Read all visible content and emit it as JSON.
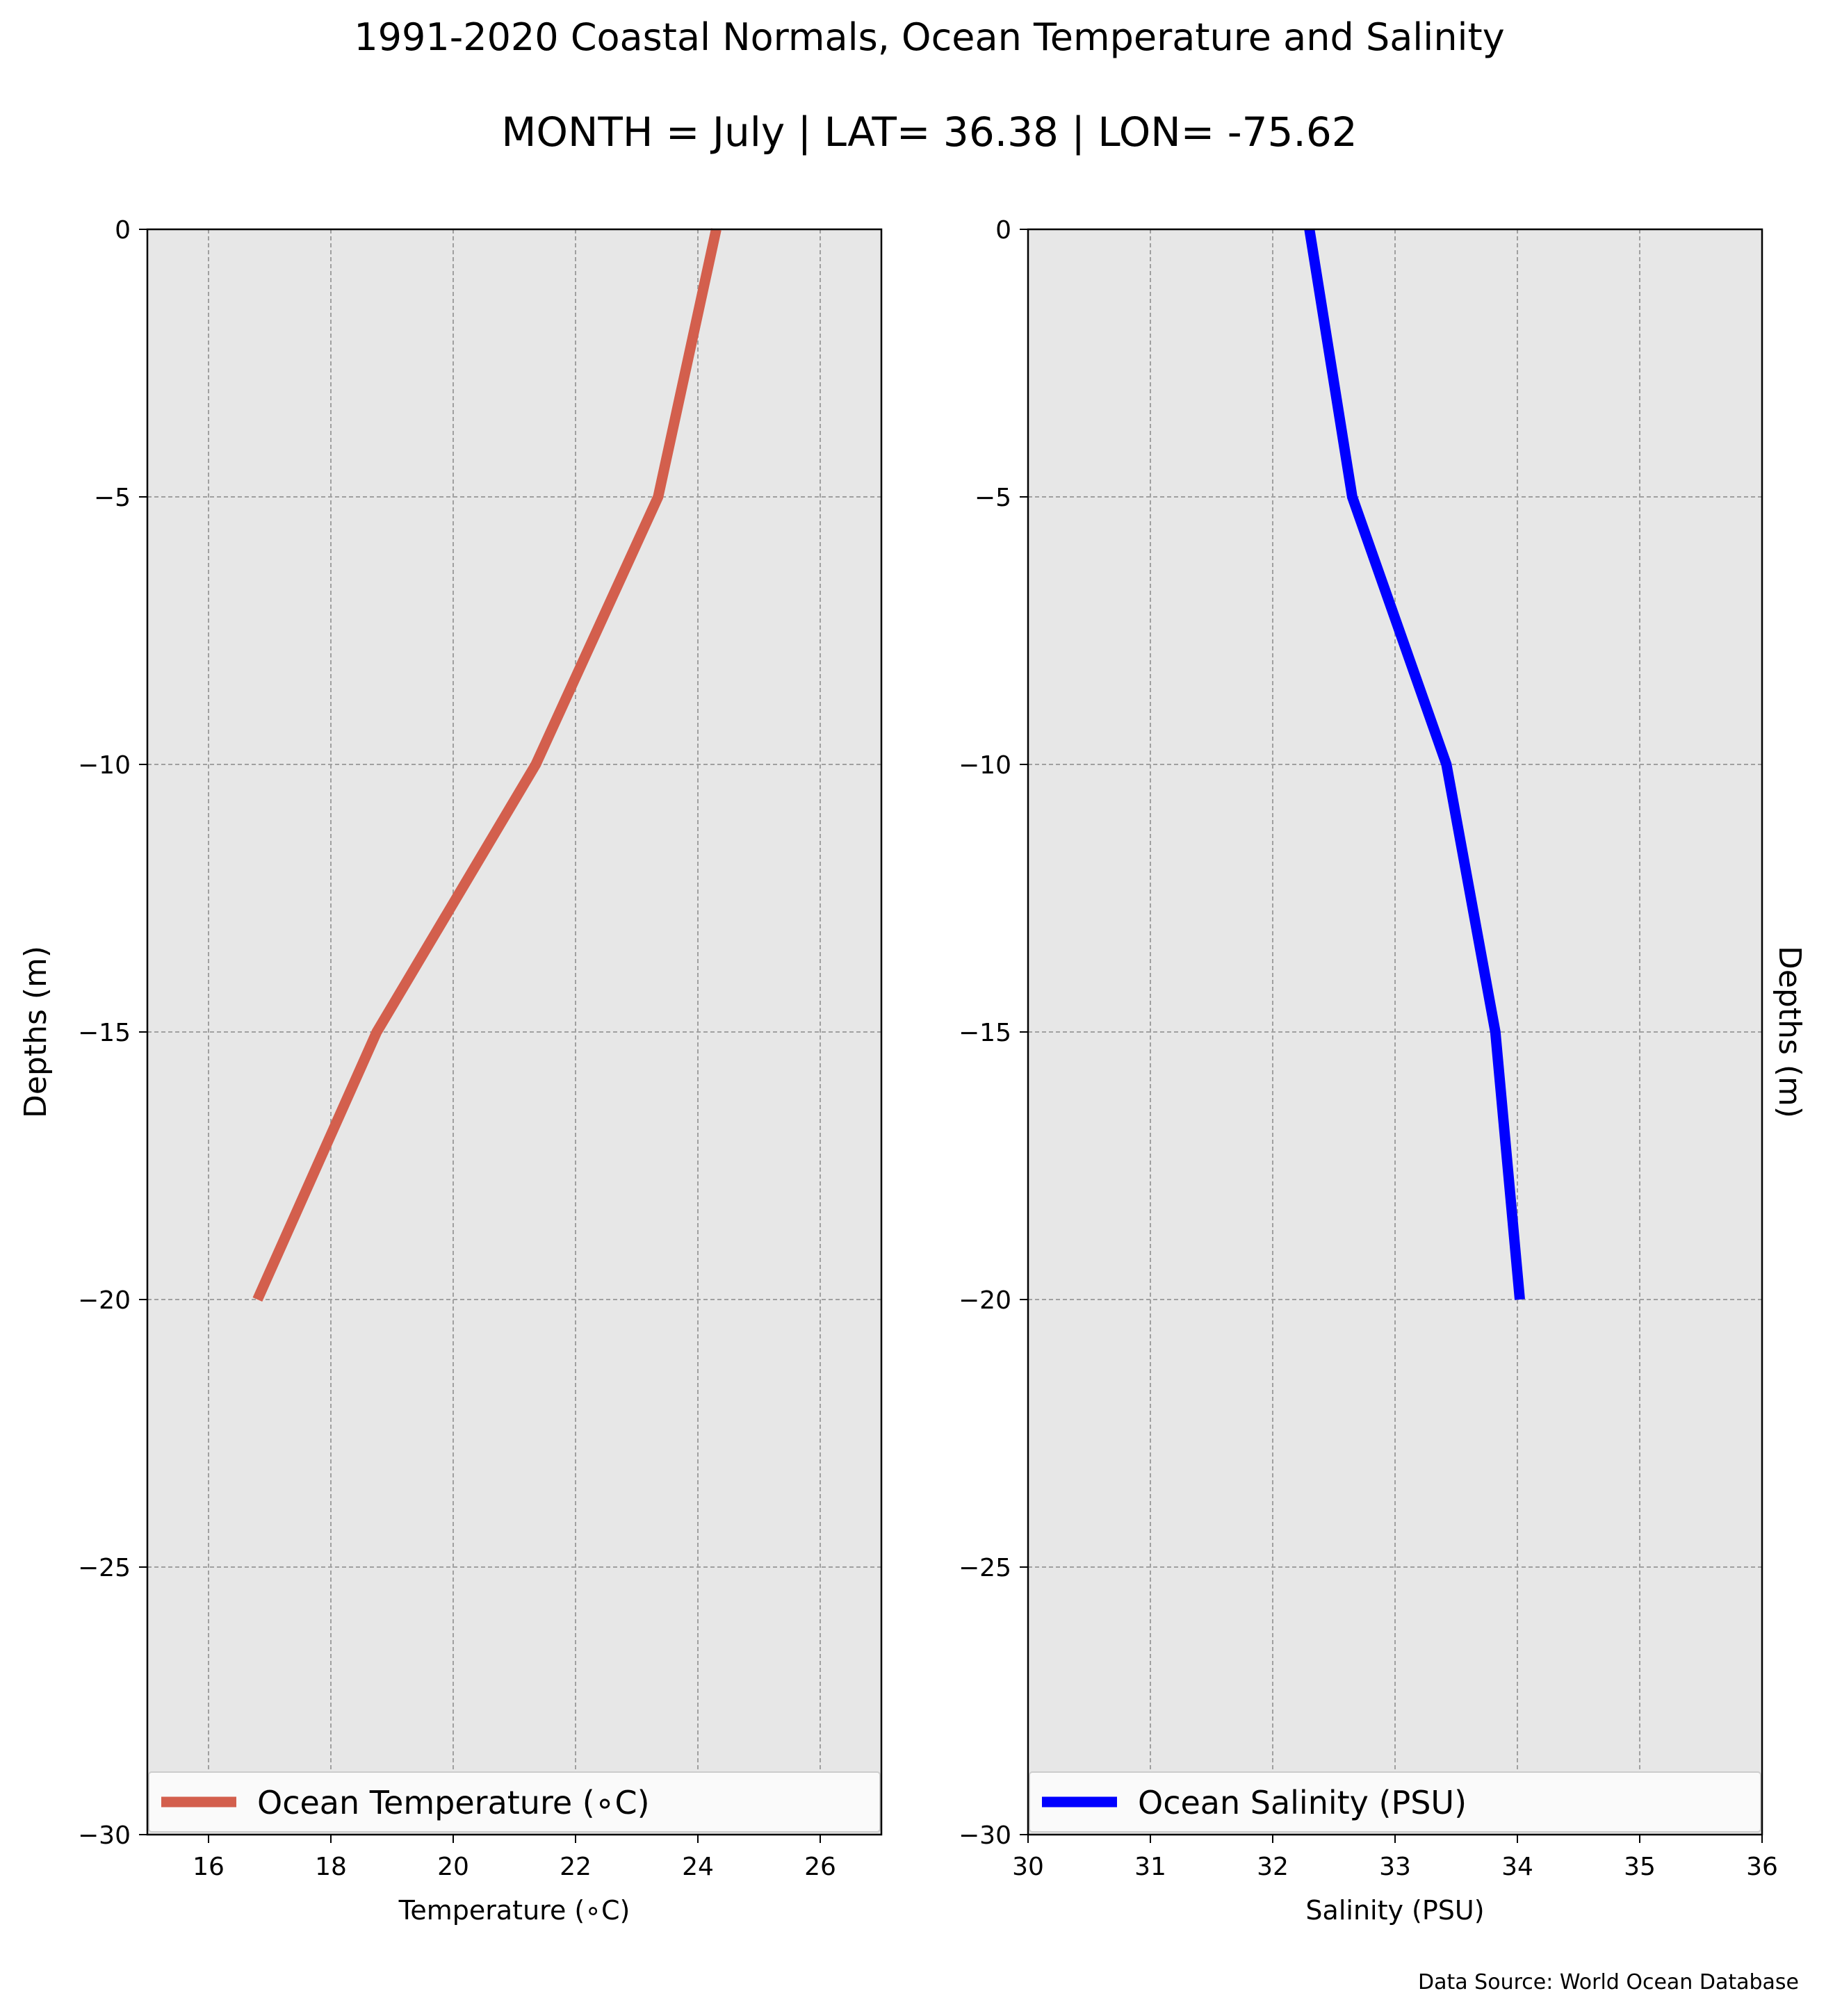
{
  "title": "1991-2020 Coastal Normals, Ocean Temperature and Salinity",
  "subtitle": "MONTH = July | LAT= 36.38 | LON= -75.62",
  "source_note": "Data Source: World Ocean Database",
  "chart_data": [
    {
      "type": "line",
      "xlabel": "Temperature (∘C)",
      "ylabel": "Depths (m)",
      "xlim": [
        15,
        27
      ],
      "ylim": [
        -30,
        0
      ],
      "xticks": [
        16,
        18,
        20,
        22,
        24,
        26
      ],
      "xtick_labels": [
        "16",
        "18",
        "20",
        "22",
        "24",
        "26"
      ],
      "yticks": [
        0,
        -5,
        -10,
        -15,
        -20,
        -25,
        -30
      ],
      "ytick_labels": [
        "0",
        "−5",
        "−10",
        "−15",
        "−20",
        "−25",
        "−30"
      ],
      "grid": true,
      "legend_position": "bottom",
      "ylabel_side": "left",
      "series": [
        {
          "name": "Ocean Temperature (∘C)",
          "color": "#d35f4d",
          "x": [
            24.3,
            23.35,
            21.35,
            18.75,
            16.8
          ],
          "y": [
            0,
            -5,
            -10,
            -15,
            -20
          ]
        }
      ]
    },
    {
      "type": "line",
      "xlabel": "Salinity (PSU)",
      "ylabel": "Depths (m)",
      "xlim": [
        30,
        36
      ],
      "ylim": [
        -30,
        0
      ],
      "xticks": [
        30,
        31,
        32,
        33,
        34,
        35,
        36
      ],
      "xtick_labels": [
        "30",
        "31",
        "32",
        "33",
        "34",
        "35",
        "36"
      ],
      "yticks": [
        0,
        -5,
        -10,
        -15,
        -20,
        -25,
        -30
      ],
      "ytick_labels": [
        "0",
        "−5",
        "−10",
        "−15",
        "−20",
        "−25",
        "−30"
      ],
      "grid": true,
      "legend_position": "bottom",
      "ylabel_side": "right",
      "series": [
        {
          "name": "Ocean Salinity (PSU)",
          "color": "#0000ff",
          "x": [
            32.3,
            32.65,
            33.42,
            33.82,
            34.02
          ],
          "y": [
            0,
            -5,
            -10,
            -15,
            -20
          ]
        }
      ]
    }
  ]
}
